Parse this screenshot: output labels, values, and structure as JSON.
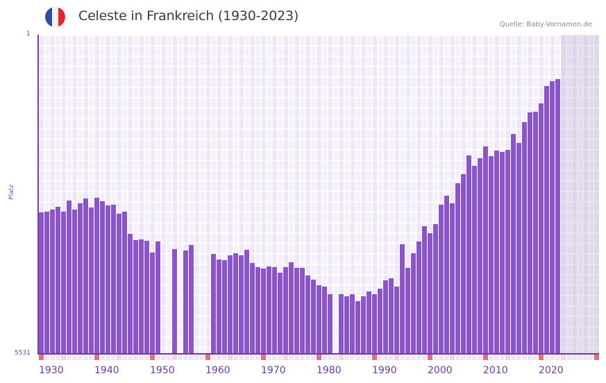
{
  "header": {
    "title": "Celeste in Frankreich (1930-2023)",
    "source": "Quelle: Baby-Vornamen.de",
    "flag_colors": [
      "#2e4fa0",
      "#f2f2f2",
      "#e2262e"
    ]
  },
  "axes": {
    "y_top_label": "1",
    "y_bottom_label": "5531",
    "y_title": "Platz"
  },
  "colors": {
    "bar": "#8b55c7",
    "decade_marker": "#e07080",
    "mid_decade_marker": "#f5d5dd",
    "strip_cell": "#ede7f7"
  },
  "chart_data": {
    "type": "bar",
    "title": "Celeste in Frankreich (1930-2023)",
    "xlabel": "",
    "ylabel": "Platz",
    "y_inverted": true,
    "ylim": [
      1,
      5531
    ],
    "xlim": [
      1930,
      2030
    ],
    "x_ticks": [
      "1930",
      "1940",
      "1950",
      "1960",
      "1970",
      "1980",
      "1990",
      "2000",
      "2010",
      "2020"
    ],
    "grid": true,
    "categories": [
      1930,
      1931,
      1932,
      1933,
      1934,
      1935,
      1936,
      1937,
      1938,
      1939,
      1940,
      1941,
      1942,
      1943,
      1944,
      1945,
      1946,
      1947,
      1948,
      1949,
      1950,
      1951,
      1952,
      1953,
      1954,
      1955,
      1956,
      1957,
      1958,
      1959,
      1960,
      1961,
      1962,
      1963,
      1964,
      1965,
      1966,
      1967,
      1968,
      1969,
      1970,
      1971,
      1972,
      1973,
      1974,
      1975,
      1976,
      1977,
      1978,
      1979,
      1980,
      1981,
      1982,
      1983,
      1984,
      1985,
      1986,
      1987,
      1988,
      1989,
      1990,
      1991,
      1992,
      1993,
      1994,
      1995,
      1996,
      1997,
      1998,
      1999,
      2000,
      2001,
      2002,
      2003,
      2004,
      2005,
      2006,
      2007,
      2008,
      2009,
      2010,
      2011,
      2012,
      2013,
      2014,
      2015,
      2016,
      2017,
      2018,
      2019,
      2020,
      2021,
      2022,
      2023
    ],
    "values": [
      3078,
      3066,
      3030,
      2982,
      3066,
      2874,
      3030,
      2922,
      2838,
      2994,
      2826,
      2886,
      2958,
      2946,
      3102,
      3066,
      3451,
      3559,
      3547,
      3571,
      3775,
      3583,
      null,
      null,
      3715,
      null,
      3739,
      3643,
      null,
      null,
      null,
      3799,
      3895,
      3907,
      3823,
      3787,
      3823,
      3727,
      3956,
      4028,
      4052,
      4016,
      4028,
      4124,
      4028,
      3944,
      4040,
      4040,
      4172,
      4244,
      4340,
      4364,
      4496,
      null,
      4496,
      4532,
      4496,
      4616,
      4532,
      4448,
      4496,
      4400,
      4256,
      4220,
      4364,
      3631,
      4040,
      3787,
      3583,
      3318,
      3438,
      3282,
      2946,
      2790,
      2922,
      2573,
      2417,
      2092,
      2272,
      2140,
      1935,
      2104,
      2008,
      2032,
      1996,
      1719,
      1875,
      1515,
      1346,
      1334,
      1190,
      889,
      805,
      769
    ]
  }
}
